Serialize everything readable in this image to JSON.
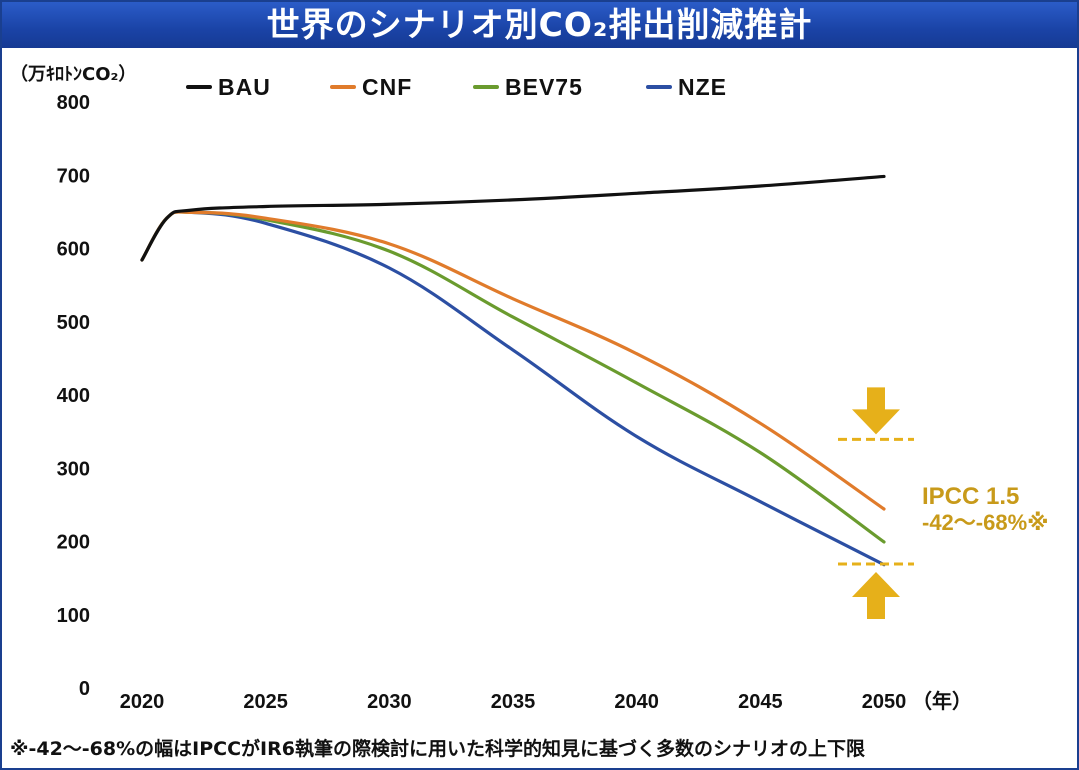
{
  "title": "世界のシナリオ別CO₂排出削減推計",
  "footnote": "※-42〜-68%の幅はIPCCがIR6執筆の際検討に用いた科学的知見に基づく多数のシナリオの上下限",
  "colors": {
    "title_bg": "#1a43a6",
    "annotation": "#e6b01a"
  },
  "chart_data": {
    "type": "line",
    "title": "世界のシナリオ別CO₂排出削減推計",
    "ylabel": "（万ｷﾛﾄﾝCO₂）",
    "xlabel": "（年）",
    "ylim": [
      0,
      800
    ],
    "xlim": [
      2019,
      2051
    ],
    "xticks": [
      "2020",
      "2025",
      "2030",
      "2035",
      "2040",
      "2045",
      "2050"
    ],
    "yticks": [
      "0",
      "100",
      "200",
      "300",
      "400",
      "500",
      "600",
      "700",
      "800"
    ],
    "grid": false,
    "legend_position": "top",
    "series": [
      {
        "name": "BAU",
        "color": "#111111",
        "x": [
          2020,
          2021,
          2022,
          2025,
          2030,
          2035,
          2040,
          2045,
          2050
        ],
        "y": [
          583,
          640,
          651,
          656,
          659,
          665,
          674,
          684,
          697
        ]
      },
      {
        "name": "CNF",
        "color": "#e07b2b",
        "x": [
          2020,
          2021,
          2022,
          2025,
          2030,
          2035,
          2040,
          2045,
          2050
        ],
        "y": [
          583,
          640,
          648,
          640,
          605,
          530,
          455,
          360,
          243
        ]
      },
      {
        "name": "BEV75",
        "color": "#6a9b2e",
        "x": [
          2020,
          2021,
          2022,
          2025,
          2030,
          2035,
          2040,
          2045,
          2050
        ],
        "y": [
          583,
          640,
          648,
          638,
          595,
          505,
          415,
          320,
          198
        ]
      },
      {
        "name": "NZE",
        "color": "#2c4fa3",
        "x": [
          2020,
          2021,
          2022,
          2025,
          2030,
          2035,
          2040,
          2045,
          2050
        ],
        "y": [
          583,
          640,
          648,
          633,
          572,
          460,
          342,
          253,
          167
        ]
      }
    ],
    "annotations": [
      {
        "label_line1": "IPCC 1.5",
        "label_line2": "-42〜-68%※",
        "upper_value": 338,
        "lower_value": 168
      }
    ]
  }
}
